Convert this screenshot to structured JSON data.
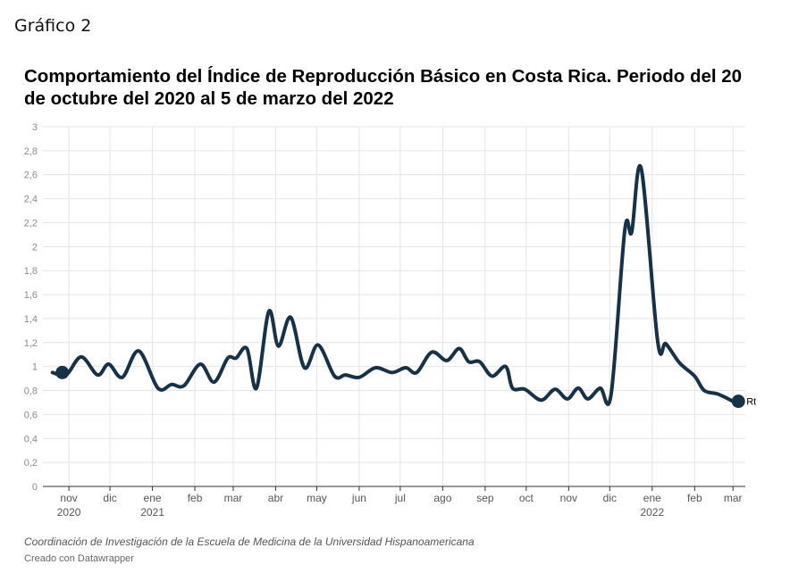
{
  "header": {
    "label": "Gráfico 2"
  },
  "footer": {
    "source": "Coordinación de Investigación de la Escuela de Medicina de la Universidad Hispanoamericana",
    "credit": "Creado con Datawrapper"
  },
  "chart_data": {
    "type": "line",
    "title": "Comportamiento del Índice de Reproducción Básico en Costa Rica. Periodo del 20 de octubre del 2020 al 5 de marzo del 2022",
    "xlabel": "",
    "ylabel": "",
    "ylim": [
      0,
      3
    ],
    "xlim": [
      "2020-10-13",
      "2022-03-10"
    ],
    "y_ticks": [
      {
        "value": 0,
        "label": "0"
      },
      {
        "value": 0.2,
        "label": "0,2"
      },
      {
        "value": 0.4,
        "label": "0,4"
      },
      {
        "value": 0.6,
        "label": "0,6"
      },
      {
        "value": 0.8,
        "label": "0,8"
      },
      {
        "value": 1,
        "label": "1"
      },
      {
        "value": 1.2,
        "label": "1,2"
      },
      {
        "value": 1.4,
        "label": "1,4"
      },
      {
        "value": 1.6,
        "label": "1,6"
      },
      {
        "value": 1.8,
        "label": "1,8"
      },
      {
        "value": 2,
        "label": "2"
      },
      {
        "value": 2.2,
        "label": "2,2"
      },
      {
        "value": 2.4,
        "label": "2,4"
      },
      {
        "value": 2.6,
        "label": "2,6"
      },
      {
        "value": 2.8,
        "label": "2,8"
      },
      {
        "value": 3,
        "label": "3"
      }
    ],
    "x_ticks": [
      {
        "date": "2020-11-01",
        "label": "nov",
        "sublabel": "2020"
      },
      {
        "date": "2020-12-01",
        "label": "dic",
        "sublabel": ""
      },
      {
        "date": "2021-01-01",
        "label": "ene",
        "sublabel": "2021"
      },
      {
        "date": "2021-02-01",
        "label": "feb",
        "sublabel": ""
      },
      {
        "date": "2021-03-01",
        "label": "mar",
        "sublabel": ""
      },
      {
        "date": "2021-04-01",
        "label": "abr",
        "sublabel": ""
      },
      {
        "date": "2021-05-01",
        "label": "may",
        "sublabel": ""
      },
      {
        "date": "2021-06-01",
        "label": "jun",
        "sublabel": ""
      },
      {
        "date": "2021-07-01",
        "label": "jul",
        "sublabel": ""
      },
      {
        "date": "2021-08-01",
        "label": "ago",
        "sublabel": ""
      },
      {
        "date": "2021-09-01",
        "label": "sep",
        "sublabel": ""
      },
      {
        "date": "2021-10-01",
        "label": "oct",
        "sublabel": ""
      },
      {
        "date": "2021-11-01",
        "label": "nov",
        "sublabel": ""
      },
      {
        "date": "2021-12-01",
        "label": "dic",
        "sublabel": ""
      },
      {
        "date": "2022-01-01",
        "label": "ene",
        "sublabel": "2022"
      },
      {
        "date": "2022-02-01",
        "label": "feb",
        "sublabel": ""
      },
      {
        "date": "2022-03-01",
        "label": "mar",
        "sublabel": ""
      }
    ],
    "grid": true,
    "line_color": "#15324a",
    "series": [
      {
        "name": "Rt",
        "points": [
          {
            "x": "2020-10-20",
            "y": 0.95
          },
          {
            "x": "2020-10-30",
            "y": 0.93
          },
          {
            "x": "2020-11-10",
            "y": 1.08
          },
          {
            "x": "2020-11-22",
            "y": 0.93
          },
          {
            "x": "2020-11-30",
            "y": 1.02
          },
          {
            "x": "2020-12-10",
            "y": 0.91
          },
          {
            "x": "2020-12-22",
            "y": 1.13
          },
          {
            "x": "2021-01-05",
            "y": 0.82
          },
          {
            "x": "2021-01-15",
            "y": 0.85
          },
          {
            "x": "2021-01-24",
            "y": 0.84
          },
          {
            "x": "2021-02-05",
            "y": 1.02
          },
          {
            "x": "2021-02-15",
            "y": 0.87
          },
          {
            "x": "2021-02-25",
            "y": 1.07
          },
          {
            "x": "2021-03-03",
            "y": 1.07
          },
          {
            "x": "2021-03-11",
            "y": 1.15
          },
          {
            "x": "2021-03-18",
            "y": 0.82
          },
          {
            "x": "2021-03-27",
            "y": 1.46
          },
          {
            "x": "2021-04-03",
            "y": 1.17
          },
          {
            "x": "2021-04-12",
            "y": 1.41
          },
          {
            "x": "2021-04-22",
            "y": 0.99
          },
          {
            "x": "2021-05-02",
            "y": 1.18
          },
          {
            "x": "2021-05-14",
            "y": 0.92
          },
          {
            "x": "2021-05-22",
            "y": 0.93
          },
          {
            "x": "2021-06-01",
            "y": 0.91
          },
          {
            "x": "2021-06-13",
            "y": 0.99
          },
          {
            "x": "2021-06-25",
            "y": 0.95
          },
          {
            "x": "2021-07-05",
            "y": 0.99
          },
          {
            "x": "2021-07-13",
            "y": 0.95
          },
          {
            "x": "2021-07-24",
            "y": 1.12
          },
          {
            "x": "2021-08-04",
            "y": 1.05
          },
          {
            "x": "2021-08-13",
            "y": 1.15
          },
          {
            "x": "2021-08-20",
            "y": 1.04
          },
          {
            "x": "2021-08-28",
            "y": 1.04
          },
          {
            "x": "2021-09-06",
            "y": 0.92
          },
          {
            "x": "2021-09-16",
            "y": 1.0
          },
          {
            "x": "2021-09-21",
            "y": 0.82
          },
          {
            "x": "2021-09-30",
            "y": 0.81
          },
          {
            "x": "2021-10-12",
            "y": 0.72
          },
          {
            "x": "2021-10-22",
            "y": 0.81
          },
          {
            "x": "2021-10-31",
            "y": 0.73
          },
          {
            "x": "2021-11-08",
            "y": 0.82
          },
          {
            "x": "2021-11-15",
            "y": 0.73
          },
          {
            "x": "2021-11-24",
            "y": 0.82
          },
          {
            "x": "2021-12-02",
            "y": 0.77
          },
          {
            "x": "2021-12-12",
            "y": 2.14
          },
          {
            "x": "2021-12-17",
            "y": 2.12
          },
          {
            "x": "2021-12-24",
            "y": 2.65
          },
          {
            "x": "2022-01-05",
            "y": 1.21
          },
          {
            "x": "2022-01-11",
            "y": 1.19
          },
          {
            "x": "2022-01-21",
            "y": 1.03
          },
          {
            "x": "2022-02-01",
            "y": 0.92
          },
          {
            "x": "2022-02-08",
            "y": 0.8
          },
          {
            "x": "2022-02-18",
            "y": 0.77
          },
          {
            "x": "2022-03-01",
            "y": 0.71
          }
        ]
      }
    ]
  }
}
